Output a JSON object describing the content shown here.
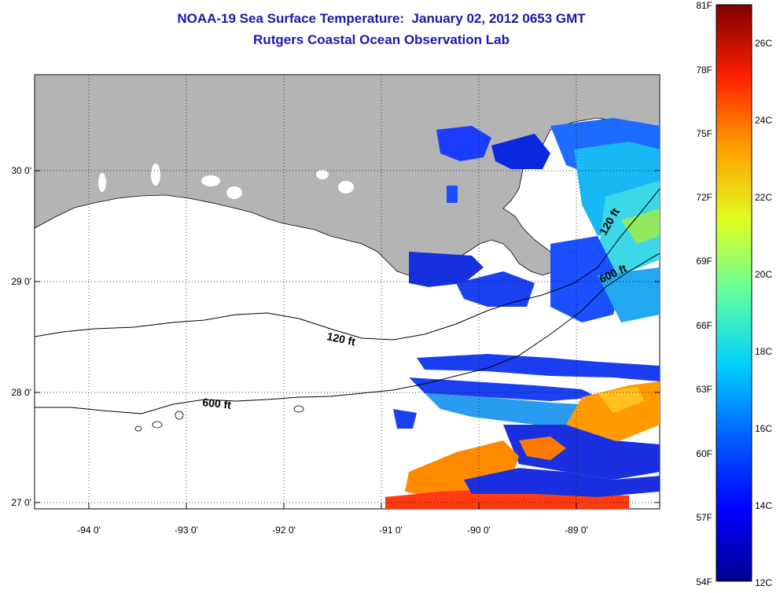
{
  "title_line1": "NOAA-19 Sea Surface Temperature:  January 02, 2012 0653 GMT",
  "title_line2": "Rutgers Coastal Ocean Observation Lab",
  "lon_ticks": [
    "-94 0'",
    "-93 0'",
    "-92 0'",
    "-91 0'",
    "-90 0'",
    "-89 0'"
  ],
  "lat_ticks": [
    "30 0'",
    "29 0'",
    "28 0'",
    "27 0'"
  ],
  "contours": [
    "120 ft",
    "600 ft",
    "120 ft",
    "600 ft"
  ],
  "colorbar": {
    "fahrenheit": [
      "81F",
      "78F",
      "75F",
      "72F",
      "69F",
      "66F",
      "63F",
      "60F",
      "57F",
      "54F"
    ],
    "celsius": [
      "26C",
      "24C",
      "22C",
      "20C",
      "18C",
      "16C",
      "14C",
      "12C"
    ],
    "colors": [
      "#00008f",
      "#0000ff",
      "#0080ff",
      "#00ffff",
      "#80ff80",
      "#ffff00",
      "#ff8000",
      "#ff0000",
      "#800000"
    ]
  },
  "colors": {
    "land": "#b4b4b4",
    "title": "#1a1aa8"
  }
}
